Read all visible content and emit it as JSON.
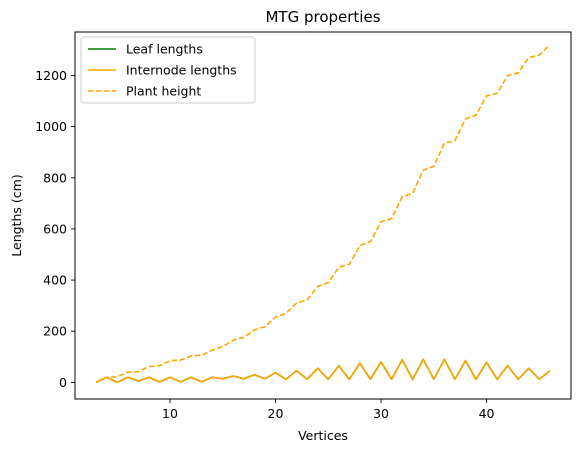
{
  "chart_data": {
    "type": "line",
    "title": "MTG properties",
    "xlabel": "Vertices",
    "ylabel": "Lengths (cm)",
    "xlim": [
      1,
      48
    ],
    "ylim": [
      -65,
      1370
    ],
    "xticks": [
      10,
      20,
      30,
      40
    ],
    "yticks": [
      0,
      200,
      400,
      600,
      800,
      1000,
      1200
    ],
    "grid": false,
    "legend": "top-left",
    "x": [
      3,
      4,
      5,
      6,
      7,
      8,
      9,
      10,
      11,
      12,
      13,
      14,
      15,
      16,
      17,
      18,
      19,
      20,
      21,
      22,
      23,
      24,
      25,
      26,
      27,
      28,
      29,
      30,
      31,
      32,
      33,
      34,
      35,
      36,
      37,
      38,
      39,
      40,
      41,
      42,
      43,
      44,
      45,
      46
    ],
    "series": [
      {
        "name": "Leaf lengths",
        "color": "#008000",
        "dash": "solid",
        "values": [
          0,
          20,
          0,
          20,
          5,
          20,
          2,
          20,
          2,
          20,
          2,
          20,
          14,
          25,
          14,
          30,
          14,
          38,
          12,
          46,
          12,
          55,
          12,
          65,
          12,
          75,
          12,
          80,
          12,
          88,
          12,
          90,
          12,
          90,
          12,
          85,
          12,
          78,
          12,
          65,
          12,
          55,
          12,
          45
        ]
      },
      {
        "name": "Internode lengths",
        "color": "#ffa500",
        "dash": "solid",
        "values": [
          0,
          20,
          0,
          20,
          5,
          20,
          2,
          20,
          2,
          20,
          2,
          20,
          14,
          25,
          14,
          30,
          14,
          38,
          12,
          46,
          12,
          55,
          12,
          65,
          12,
          75,
          12,
          80,
          12,
          88,
          12,
          90,
          12,
          90,
          12,
          85,
          12,
          78,
          12,
          65,
          12,
          55,
          12,
          45
        ]
      },
      {
        "name": "Plant height",
        "color": "#ffa500",
        "dash": "dashed",
        "values": [
          0,
          20,
          22,
          40,
          42,
          62,
          65,
          85,
          87,
          104,
          106,
          126,
          140,
          165,
          176,
          205,
          218,
          255,
          270,
          310,
          322,
          375,
          390,
          450,
          462,
          535,
          550,
          628,
          640,
          725,
          740,
          830,
          845,
          935,
          945,
          1030,
          1045,
          1120,
          1130,
          1200,
          1210,
          1270,
          1280,
          1320
        ]
      }
    ]
  }
}
